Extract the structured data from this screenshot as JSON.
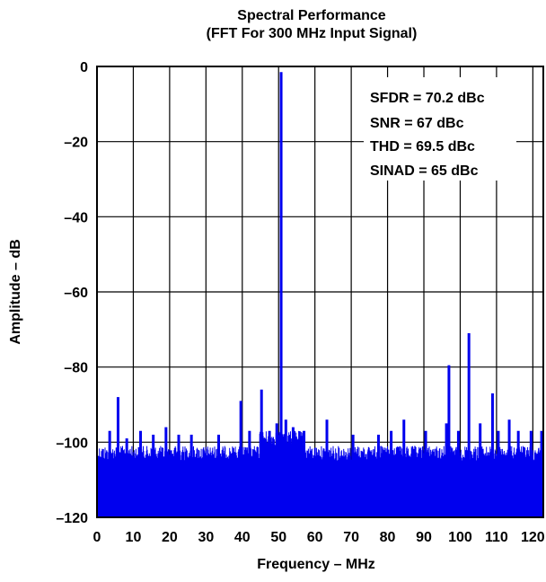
{
  "chart_data": {
    "type": "line",
    "title": "Spectral Performance",
    "subtitle": "(FFT For 300 MHz Input Signal)",
    "xlabel": "Frequency – MHz",
    "ylabel": "Amplitude – dB",
    "xlim": [
      0,
      122.88
    ],
    "ylim": [
      -120,
      0
    ],
    "x_ticks": [
      0,
      10,
      20,
      30,
      40,
      50,
      60,
      70,
      80,
      90,
      100,
      110,
      120
    ],
    "x_tick_labels": [
      "0",
      "10",
      "20",
      "30",
      "40",
      "50",
      "60",
      "70",
      "80",
      "90",
      "100",
      "110",
      "120"
    ],
    "y_ticks": [
      0,
      -20,
      -40,
      -60,
      -80,
      -100,
      -120
    ],
    "y_tick_labels": [
      "0",
      "–20",
      "–40",
      "–60",
      "–80",
      "–100",
      "–120"
    ],
    "grid": true,
    "series_color": "#0000ee",
    "annotations": [
      "SFDR = 70.2 dBc",
      "SNR = 67 dBc",
      "THD = 69.5 dBc",
      "SINAD = 65 dBc"
    ],
    "noise_floor": {
      "top_db": -102,
      "bottom_db": -120
    },
    "peaks": [
      {
        "x": 5.8,
        "y": -88
      },
      {
        "x": 3.5,
        "y": -97
      },
      {
        "x": 8.2,
        "y": -99
      },
      {
        "x": 12.0,
        "y": -97
      },
      {
        "x": 15.5,
        "y": -98
      },
      {
        "x": 19.0,
        "y": -96
      },
      {
        "x": 22.5,
        "y": -98
      },
      {
        "x": 26.0,
        "y": -98
      },
      {
        "x": 33.5,
        "y": -98
      },
      {
        "x": 39.6,
        "y": -89
      },
      {
        "x": 42.0,
        "y": -97
      },
      {
        "x": 45.3,
        "y": -86
      },
      {
        "x": 47.5,
        "y": -97
      },
      {
        "x": 49.5,
        "y": -95
      },
      {
        "x": 50.7,
        "y": -1.5
      },
      {
        "x": 52.0,
        "y": -94
      },
      {
        "x": 54.0,
        "y": -96
      },
      {
        "x": 57.0,
        "y": -97
      },
      {
        "x": 63.3,
        "y": -94
      },
      {
        "x": 70.5,
        "y": -98
      },
      {
        "x": 77.5,
        "y": -98
      },
      {
        "x": 81.0,
        "y": -97
      },
      {
        "x": 84.5,
        "y": -94
      },
      {
        "x": 90.5,
        "y": -97
      },
      {
        "x": 96.2,
        "y": -95
      },
      {
        "x": 96.9,
        "y": -79.5
      },
      {
        "x": 99.5,
        "y": -97
      },
      {
        "x": 102.4,
        "y": -71
      },
      {
        "x": 105.5,
        "y": -95
      },
      {
        "x": 108.9,
        "y": -87
      },
      {
        "x": 110.5,
        "y": -97
      },
      {
        "x": 113.5,
        "y": -94
      },
      {
        "x": 116.0,
        "y": -97
      },
      {
        "x": 119.5,
        "y": -97
      },
      {
        "x": 122.4,
        "y": -97
      }
    ]
  }
}
